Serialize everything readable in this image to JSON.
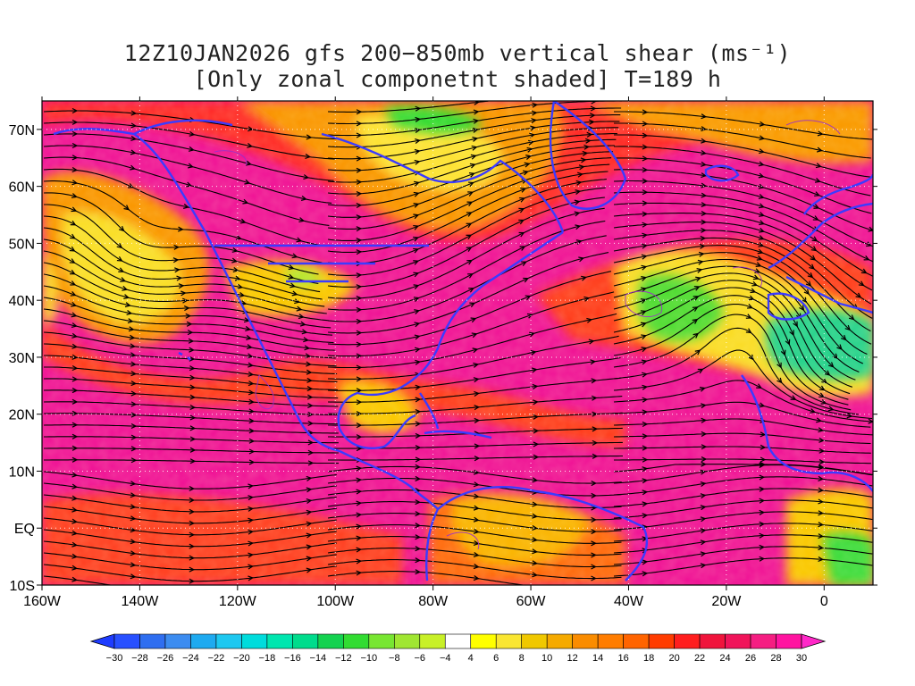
{
  "title": {
    "line1": "12Z10JAN2026 gfs 200−850mb vertical shear (ms⁻¹)",
    "line2": "[Only zonal componetnt shaded] T=189 h"
  },
  "map": {
    "lon_range": [
      -160,
      10
    ],
    "lat_range": [
      -10,
      75
    ],
    "lon_ticks": [
      "160W",
      "140W",
      "120W",
      "100W",
      "80W",
      "60W",
      "40W",
      "20W",
      "0"
    ],
    "lat_ticks": [
      "10S",
      "EQ",
      "10N",
      "20N",
      "30N",
      "40N",
      "50N",
      "60N",
      "70N"
    ]
  },
  "colorbar": {
    "labels": [
      "−30",
      "−28",
      "−26",
      "−24",
      "−22",
      "−20",
      "−18",
      "−16",
      "−14",
      "−12",
      "−10",
      "−8",
      "−6",
      "−4",
      "4",
      "6",
      "8",
      "10",
      "12",
      "14",
      "16",
      "18",
      "20",
      "22",
      "24",
      "26",
      "28",
      "30"
    ],
    "colors": [
      "#1e3cff",
      "#2850ff",
      "#2f6ef0",
      "#3c8cf0",
      "#1eaaf0",
      "#1ec8f0",
      "#00dcdc",
      "#00e6af",
      "#00dc8c",
      "#14d250",
      "#32dc32",
      "#78e632",
      "#a0e632",
      "#c8f028",
      "#ffffff",
      "#ffff00",
      "#fae632",
      "#f0c800",
      "#f5aa00",
      "#fa8c00",
      "#ff7d00",
      "#ff6400",
      "#ff3c00",
      "#ff1e1e",
      "#f0143c",
      "#f0145a",
      "#f51e82",
      "#ff14a0",
      "#ff28c8"
    ]
  },
  "colors": {
    "coast": "#3b3bff",
    "contour": "#9b30c8",
    "streamline": "#000000"
  }
}
